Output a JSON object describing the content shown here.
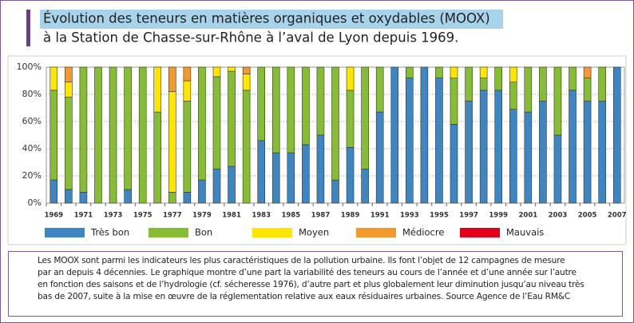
{
  "chart_data": {
    "type": "bar",
    "stacked": true,
    "title": [
      "Évolution des teneurs en matières organiques et oxydables (MOOX)",
      "à la Station de Chasse-sur-Rhône à l’aval de Lyon depuis 1969."
    ],
    "categories": [
      "1969",
      null,
      "1971",
      null,
      "1973",
      null,
      "1975",
      null,
      "1977",
      null,
      "1979",
      null,
      "1981",
      null,
      "1983",
      null,
      "1985",
      null,
      "1987",
      null,
      "1989",
      null,
      "1991",
      null,
      "1993",
      null,
      "1995",
      null,
      "1997",
      null,
      "1999",
      null,
      "2001",
      null,
      "2003",
      null,
      "2005",
      null,
      "2007"
    ],
    "series": [
      {
        "name": "Très bon",
        "color": "#3d86c2",
        "values": [
          17,
          10,
          8,
          0,
          0,
          10,
          0,
          0,
          0,
          8,
          17,
          25,
          27,
          0,
          46,
          37,
          37,
          43,
          50,
          17,
          41,
          25,
          67,
          100,
          92,
          100,
          92,
          58,
          75,
          83,
          83,
          69,
          67,
          75,
          50,
          83,
          75,
          75,
          100
        ]
      },
      {
        "name": "Bon",
        "color": "#86bd32",
        "values": [
          66,
          68,
          92,
          100,
          100,
          90,
          100,
          67,
          8,
          67,
          83,
          68,
          70,
          83,
          54,
          63,
          63,
          57,
          50,
          83,
          42,
          75,
          33,
          0,
          8,
          0,
          8,
          34,
          25,
          9,
          17,
          20,
          33,
          25,
          50,
          17,
          17,
          25,
          0
        ]
      },
      {
        "name": "Moyen",
        "color": "#ffe600",
        "values": [
          17,
          11,
          0,
          0,
          0,
          0,
          0,
          33,
          74,
          15,
          0,
          7,
          3,
          12,
          0,
          0,
          0,
          0,
          0,
          0,
          17,
          0,
          0,
          0,
          0,
          0,
          0,
          8,
          0,
          8,
          0,
          11,
          0,
          0,
          0,
          0,
          0,
          0,
          0
        ]
      },
      {
        "name": "Médiocre",
        "color": "#f29a2e",
        "values": [
          0,
          11,
          0,
          0,
          0,
          0,
          0,
          0,
          18,
          10,
          0,
          0,
          0,
          5,
          0,
          0,
          0,
          0,
          0,
          0,
          0,
          0,
          0,
          0,
          0,
          0,
          0,
          0,
          0,
          0,
          0,
          0,
          0,
          0,
          0,
          0,
          8,
          0,
          0
        ]
      },
      {
        "name": "Mauvais",
        "color": "#e3001b",
        "values": [
          0,
          0,
          0,
          0,
          0,
          0,
          0,
          0,
          0,
          0,
          0,
          0,
          0,
          0,
          0,
          0,
          0,
          0,
          0,
          0,
          0,
          0,
          0,
          0,
          0,
          0,
          0,
          0,
          0,
          0,
          0,
          0,
          0,
          0,
          0,
          0,
          0,
          0,
          0
        ]
      }
    ],
    "ylim": [
      0,
      100
    ],
    "yticks": [
      {
        "value": 0,
        "label": "0%"
      },
      {
        "value": 20,
        "label": "20%"
      },
      {
        "value": 40,
        "label": "40%"
      },
      {
        "value": 60,
        "label": "60%"
      },
      {
        "value": 80,
        "label": "80%"
      },
      {
        "value": 100,
        "label": "100%"
      }
    ],
    "grid": true,
    "legend": "bottom"
  },
  "caption": [
    "Les MOOX sont parmi les indicateurs les plus caractéristiques de la pollution urbaine. Ils font l’objet de 12 campagnes de mesure",
    "par an depuis 4 décennies. Le graphique montre d’une part la variabilité des teneurs au cours de l’année et d’une année sur l’autre",
    "en fonction des saisons et de l’hydrologie (cf. sécheresse 1976), d’autre part et plus globalement leur diminution jusqu’au niveau très",
    "bas de 2007, suite à la mise en œuvre de la réglementation relative aux eaux résiduaires urbaines. Source Agence de l’Eau RM&C"
  ]
}
